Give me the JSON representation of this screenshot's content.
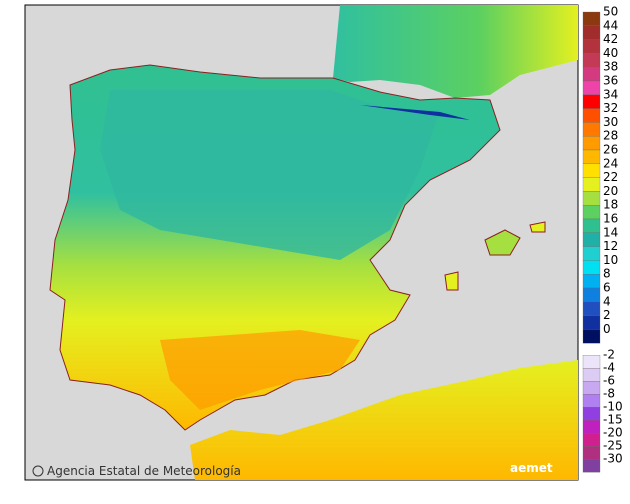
{
  "credit": "Agencia Estatal de Meteorología",
  "logo": "aemet",
  "legend": {
    "items": [
      {
        "value": 50,
        "color": "#8b3a10"
      },
      {
        "value": 44,
        "color": "#a02c2c"
      },
      {
        "value": 42,
        "color": "#b2323e"
      },
      {
        "value": 40,
        "color": "#c23a55"
      },
      {
        "value": 38,
        "color": "#d43a80"
      },
      {
        "value": 36,
        "color": "#ee44aa"
      },
      {
        "value": 34,
        "color": "#ff0000"
      },
      {
        "value": 32,
        "color": "#ff5000"
      },
      {
        "value": 30,
        "color": "#ff7800"
      },
      {
        "value": 28,
        "color": "#ff9a00"
      },
      {
        "value": 26,
        "color": "#ffb800"
      },
      {
        "value": 24,
        "color": "#ffe000"
      },
      {
        "value": 22,
        "color": "#e4f020"
      },
      {
        "value": 20,
        "color": "#a6e040"
      },
      {
        "value": 18,
        "color": "#5cd060"
      },
      {
        "value": 16,
        "color": "#30c090"
      },
      {
        "value": 14,
        "color": "#20b0a8"
      },
      {
        "value": 12,
        "color": "#20d0d0"
      },
      {
        "value": 10,
        "color": "#00e0f0"
      },
      {
        "value": 8,
        "color": "#00b0f0"
      },
      {
        "value": 6,
        "color": "#1080e0"
      },
      {
        "value": 4,
        "color": "#2050c0"
      },
      {
        "value": 2,
        "color": "#1030a0"
      },
      {
        "value": 0,
        "color": "#001060"
      },
      {
        "value": -2,
        "color": "#ece4f8"
      },
      {
        "value": -4,
        "color": "#dccbf2"
      },
      {
        "value": -6,
        "color": "#c8a8f0"
      },
      {
        "value": -8,
        "color": "#b080f0"
      },
      {
        "value": -10,
        "color": "#9040e0"
      },
      {
        "value": -15,
        "color": "#c020c0"
      },
      {
        "value": -20,
        "color": "#d02090"
      },
      {
        "value": -25,
        "color": "#b03080"
      },
      {
        "value": -30,
        "color": "#8040a0"
      }
    ]
  }
}
